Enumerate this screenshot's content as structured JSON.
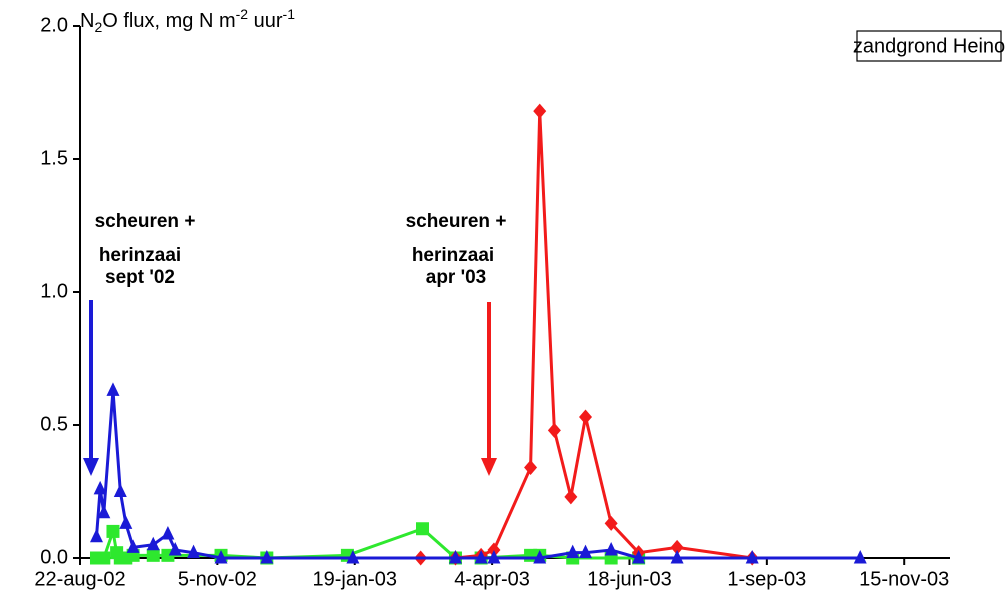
{
  "chart_data": {
    "type": "line",
    "y_label": [
      "N",
      "2",
      "O flux, mg N m",
      "-2",
      " uur",
      "-1"
    ],
    "xlim": [
      "2002-08-22",
      "2003-12-10"
    ],
    "xticks": [
      {
        "value": "2002-08-22",
        "label": "22-aug-02"
      },
      {
        "value": "2002-11-05",
        "label": "5-nov-02"
      },
      {
        "value": "2003-01-19",
        "label": "19-jan-03"
      },
      {
        "value": "2003-04-04",
        "label": "4-apr-03"
      },
      {
        "value": "2003-06-18",
        "label": "18-jun-03"
      },
      {
        "value": "2003-09-01",
        "label": "1-sep-03"
      },
      {
        "value": "2003-11-15",
        "label": "15-nov-03"
      }
    ],
    "ylim": [
      0,
      2
    ],
    "yticks": [
      {
        "value": 0,
        "label": "0.0"
      },
      0.5,
      {
        "value": 1,
        "label": "1.0"
      },
      1.5,
      {
        "value": 2,
        "label": "2.0"
      }
    ],
    "box_label": "zandgrond Heino",
    "annotations": [
      {
        "lines": [
          "scheuren +",
          "herinzaai",
          "sept '02"
        ],
        "color": "#1a1ad6"
      },
      {
        "lines": [
          "scheuren +",
          "herinzaai",
          "apr '03"
        ],
        "color": "#f21b1b"
      }
    ],
    "series": [
      {
        "color": "#2ee82e",
        "marker": "square",
        "x": [
          "2002-08-31",
          "2002-09-02",
          "2002-09-04",
          "2002-09-09",
          "2002-09-11",
          "2002-09-13",
          "2002-09-16",
          "2002-09-20",
          "2002-10-01",
          "2002-10-09",
          "2002-11-07",
          "2002-12-02",
          "2003-01-15",
          "2003-02-25",
          "2003-03-15",
          "2003-03-29",
          "2003-04-25",
          "2003-04-30",
          "2003-05-18",
          "2003-06-08",
          "2003-06-23"
        ],
        "values": [
          0.0,
          0.0,
          0.0,
          0.1,
          0.02,
          0.0,
          0.0,
          0.01,
          0.01,
          0.01,
          0.01,
          0.0,
          0.01,
          0.11,
          0.0,
          0.0,
          0.01,
          0.01,
          0.0,
          0.0,
          0.0
        ]
      },
      {
        "color": "#f21b1b",
        "marker": "diamond",
        "x": [
          "2003-02-24",
          "2003-03-15",
          "2003-03-29",
          "2003-04-05",
          "2003-04-25",
          "2003-04-30",
          "2003-05-08",
          "2003-05-17",
          "2003-05-25",
          "2003-06-08",
          "2003-06-23",
          "2003-07-14",
          "2003-08-24"
        ],
        "values": [
          0.0,
          0.0,
          0.01,
          0.03,
          0.34,
          1.68,
          0.48,
          0.23,
          0.53,
          0.13,
          0.02,
          0.04,
          0.0
        ]
      },
      {
        "color": "#1a1ad6",
        "marker": "triangle",
        "x": [
          "2002-08-31",
          "2002-09-02",
          "2002-09-04",
          "2002-09-09",
          "2002-09-13",
          "2002-09-16",
          "2002-09-20",
          "2002-10-01",
          "2002-10-09",
          "2002-10-13",
          "2002-10-23",
          "2002-11-07",
          "2002-12-02",
          "2003-01-18",
          "2003-03-15",
          "2003-03-29",
          "2003-04-05",
          "2003-04-30",
          "2003-05-18",
          "2003-05-25",
          "2003-06-08",
          "2003-06-23",
          "2003-07-14",
          "2003-08-24",
          "2003-10-22"
        ],
        "values": [
          0.08,
          0.26,
          0.17,
          0.63,
          0.25,
          0.13,
          0.04,
          0.05,
          0.09,
          0.03,
          0.02,
          0.0,
          0.0,
          0.0,
          0.0,
          0.0,
          0.0,
          0.0,
          0.02,
          0.02,
          0.03,
          0.0,
          0.0,
          0.0,
          0.0
        ]
      }
    ]
  }
}
